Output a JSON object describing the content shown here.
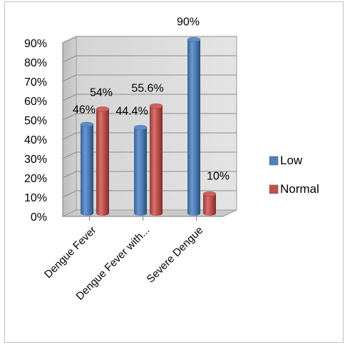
{
  "chart_data": {
    "type": "bar",
    "title": "",
    "xlabel": "",
    "ylabel": "",
    "categories": [
      "Dengue Fever",
      "Dengue Fever with...",
      "Severe Dengue"
    ],
    "series": [
      {
        "name": "Low",
        "values": [
          46,
          44.4,
          90
        ],
        "labels": [
          "46%",
          "44.4%",
          "90%"
        ],
        "color": "#4f81bd"
      },
      {
        "name": "Normal",
        "values": [
          54,
          55.6,
          10
        ],
        "labels": [
          "54%",
          "55.6%",
          "10%"
        ],
        "color": "#c0504d"
      }
    ],
    "y_ticks": [
      "0%",
      "10%",
      "20%",
      "30%",
      "40%",
      "50%",
      "60%",
      "70%",
      "80%",
      "90%"
    ],
    "ylim": [
      0,
      90
    ],
    "grid": true,
    "legend_position": "right",
    "style": "3d-cylinder"
  }
}
